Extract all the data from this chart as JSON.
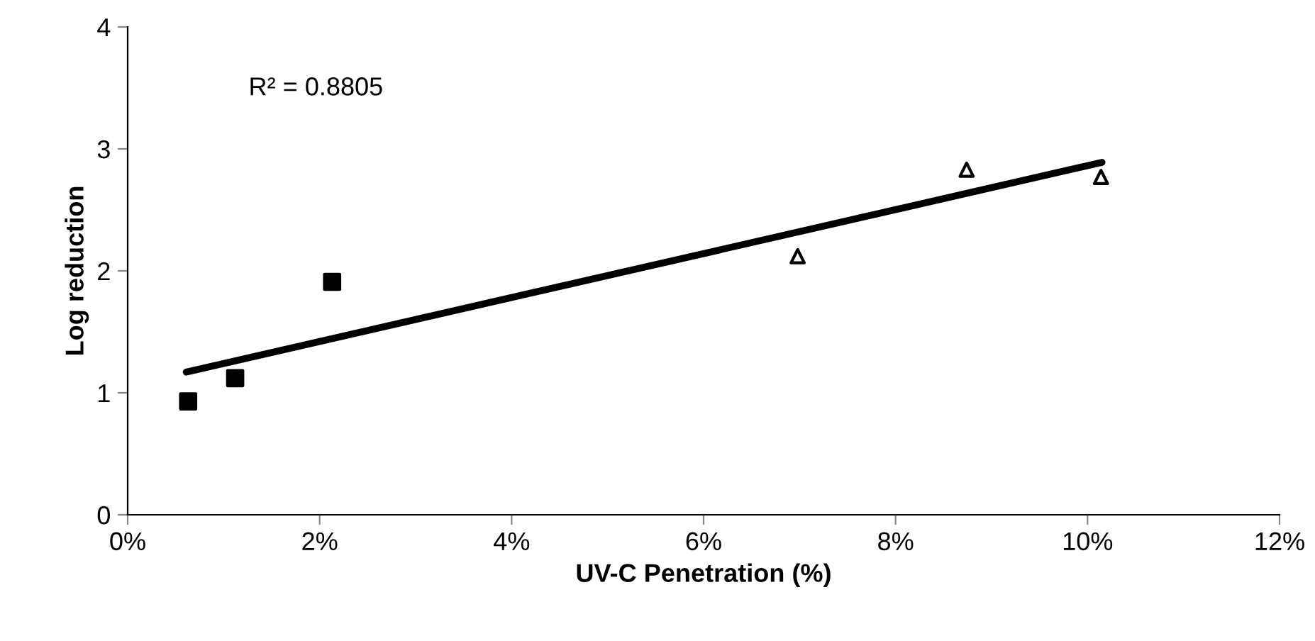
{
  "chart_data": {
    "type": "scatter",
    "xlabel": "UV-C Penetration (%)",
    "ylabel": "Log reduction",
    "xlim": [
      0,
      12
    ],
    "xticks": [
      {
        "value": 0,
        "label": "0%"
      },
      {
        "value": 2,
        "label": "2%"
      },
      {
        "value": 4,
        "label": "4%"
      },
      {
        "value": 6,
        "label": "6%"
      },
      {
        "value": 8,
        "label": "8%"
      },
      {
        "value": 10,
        "label": "10%"
      },
      {
        "value": 12,
        "label": "12%"
      }
    ],
    "ylim": [
      0,
      4
    ],
    "yticks": [
      0,
      1,
      2,
      3,
      4
    ],
    "grid": false,
    "legend": false,
    "annotations": [
      "R² = 0.8805"
    ],
    "series": [
      {
        "marker": "square",
        "color": "#000000",
        "x": [
          0.63,
          1.12,
          2.13
        ],
        "values": [
          0.93,
          1.12,
          1.91
        ]
      },
      {
        "marker": "triangle",
        "color": "#000000",
        "x": [
          6.98,
          8.74,
          10.14
        ],
        "values": [
          2.12,
          2.83,
          2.77
        ]
      },
      {
        "type": "line",
        "marker": "none",
        "line_style": "solid",
        "color": "#000000",
        "x": [
          0.61,
          10.15
        ],
        "values": [
          1.17,
          2.89
        ]
      }
    ]
  }
}
